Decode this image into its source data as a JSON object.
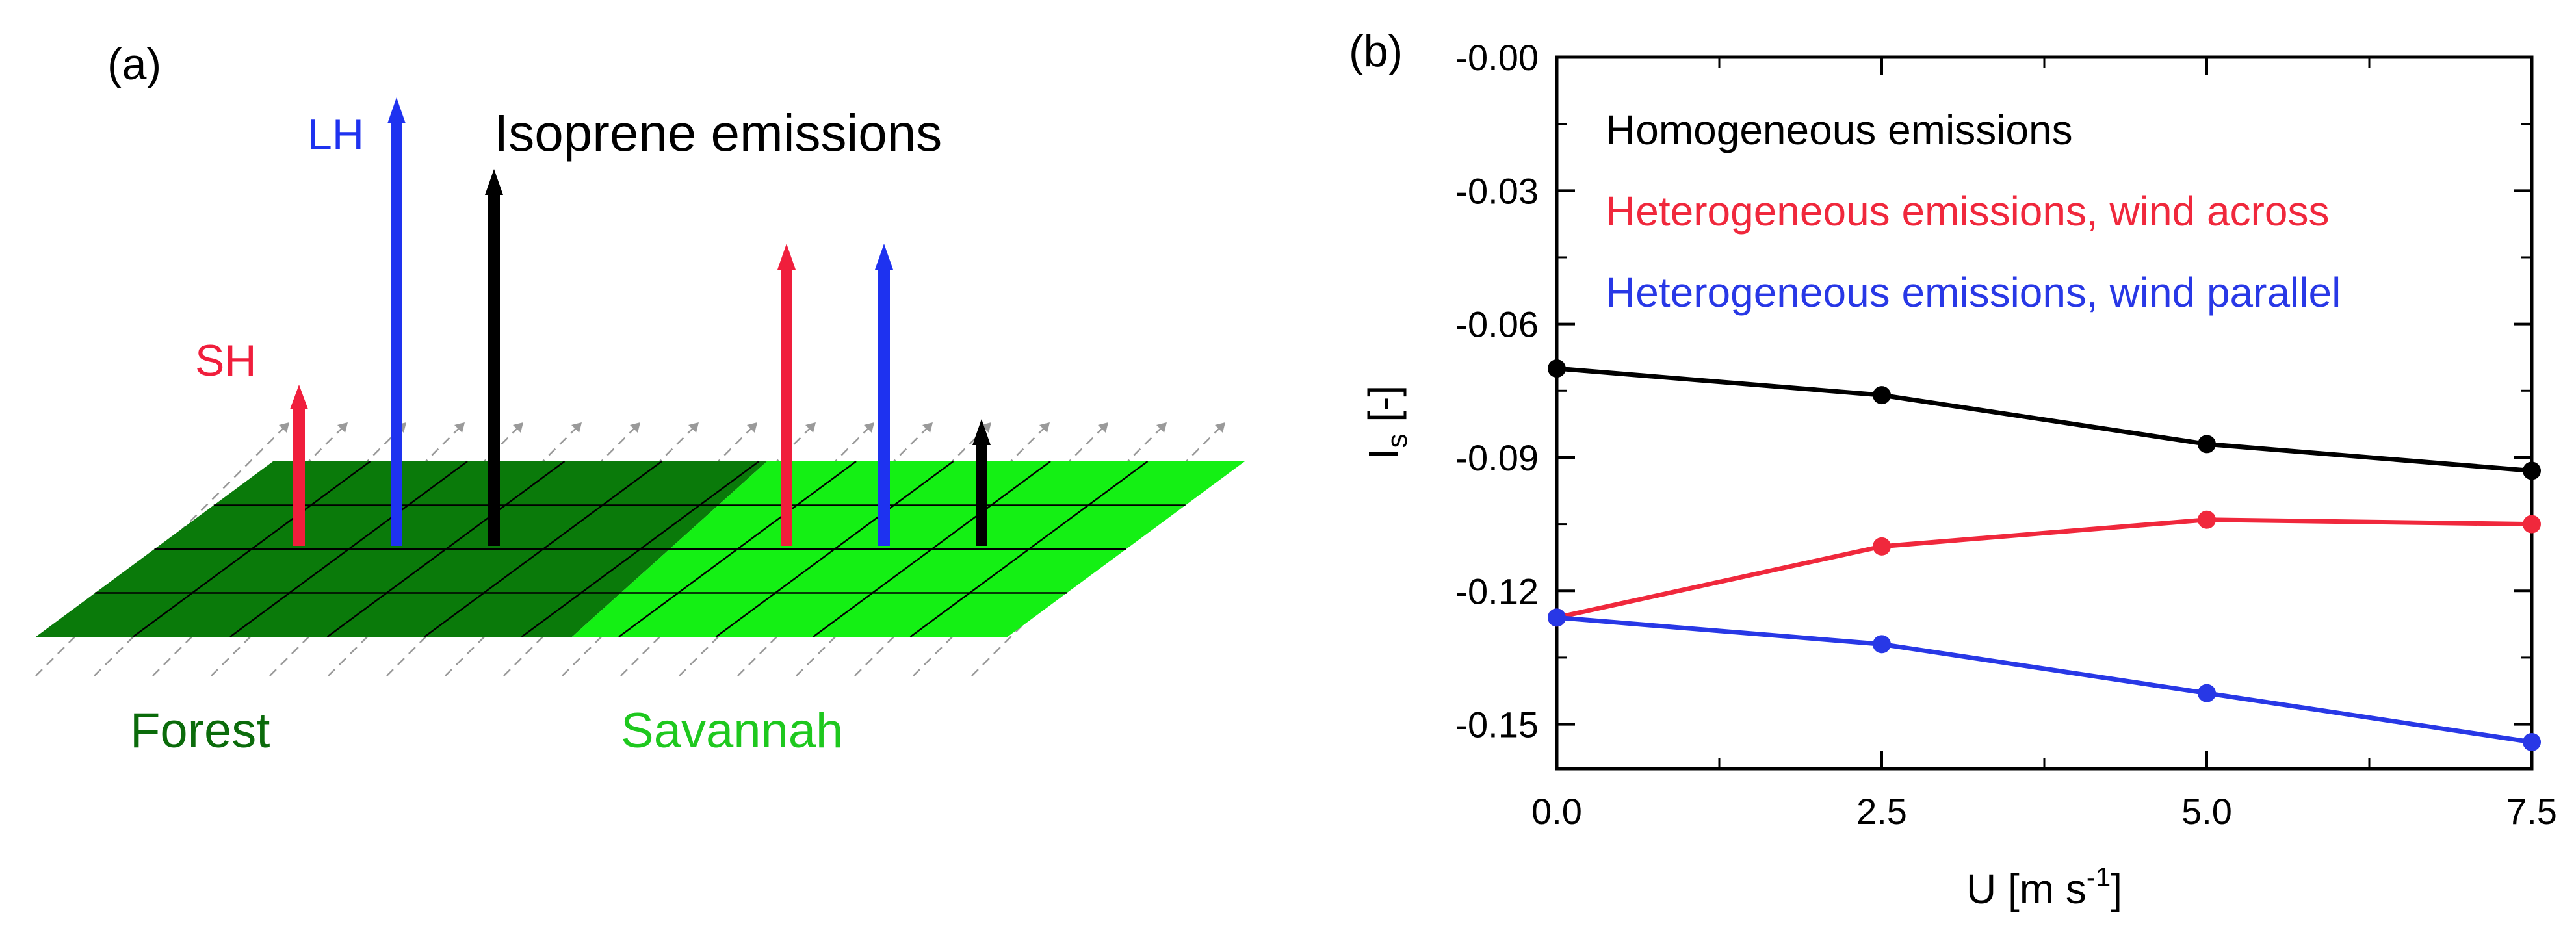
{
  "panel_a": {
    "label": "(a)",
    "sh_label": "SH",
    "lh_label": "LH",
    "isoprene_label": "Isoprene emissions",
    "forest_label": "Forest",
    "savannah_label": "Savannah",
    "colors": {
      "forest": "#0a7a0a",
      "savannah": "#14f014",
      "forest_text": "#0b6b0b",
      "savannah_text": "#1ec81e",
      "sh": "#f01e3c",
      "lh": "#1e32f0",
      "isoprene": "#000000"
    }
  },
  "panel_b": {
    "label": "(b)"
  },
  "chart_data": {
    "type": "line",
    "xlabel": "U [m s⁻¹]",
    "ylabel": "Is [-]",
    "ylabel_main": "I",
    "ylabel_sub": "s",
    "ylabel_rest": " [-]",
    "xlabel_main": "U [m s",
    "xlabel_sup": "-1",
    "xlabel_end": "]",
    "x": [
      0.0,
      2.5,
      5.0,
      7.5
    ],
    "xticks": [
      "0.0",
      "2.5",
      "5.0",
      "7.5"
    ],
    "yticks": [
      "-0.00",
      "-0.03",
      "-0.06",
      "-0.09",
      "-0.12",
      "-0.15"
    ],
    "xlim": [
      0,
      7.5
    ],
    "ylim": [
      -0.16,
      0.0
    ],
    "grid": false,
    "legend_position": "top-left",
    "series": [
      {
        "name": "Homogeneous emissions",
        "color": "#000000",
        "values": [
          -0.07,
          -0.076,
          -0.087,
          -0.093
        ]
      },
      {
        "name": "Heterogeneous emissions, wind across",
        "color": "#f0283c",
        "values": [
          -0.126,
          -0.11,
          -0.104,
          -0.105
        ]
      },
      {
        "name": "Heterogeneous emissions, wind parallel",
        "color": "#2838e6",
        "values": [
          -0.126,
          -0.132,
          -0.143,
          -0.154
        ]
      }
    ]
  }
}
